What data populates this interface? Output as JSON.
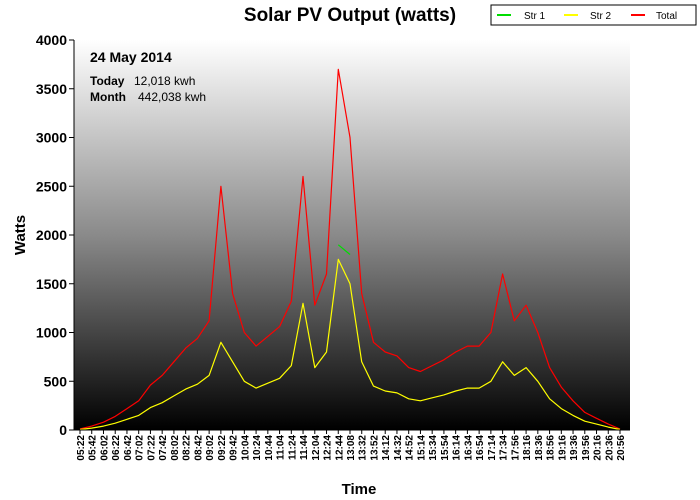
{
  "chart_data": {
    "type": "line",
    "title": "Solar PV Output (watts)",
    "xlabel": "Time",
    "ylabel": "Watts",
    "ylim": [
      0,
      4000
    ],
    "yticks": [
      0,
      500,
      1000,
      1500,
      2000,
      2500,
      3000,
      3500,
      4000
    ],
    "grid": false,
    "legend_position": "top-right",
    "annotations": {
      "date": "24 May 2014",
      "today_label": "Today",
      "today_value": "12,018 kwh",
      "month_label": "Month",
      "month_value": "442,038 kwh"
    },
    "x": [
      "05:22",
      "05:42",
      "06:02",
      "06:22",
      "06:42",
      "07:02",
      "07:22",
      "07:42",
      "08:02",
      "08:22",
      "08:42",
      "09:02",
      "09:22",
      "09:42",
      "10:04",
      "10:24",
      "10:44",
      "11:04",
      "11:24",
      "11:44",
      "12:04",
      "12:24",
      "12:44",
      "13:08",
      "13:32",
      "13:52",
      "14:12",
      "14:32",
      "14:52",
      "15:14",
      "15:34",
      "15:54",
      "16:14",
      "16:34",
      "16:54",
      "17:14",
      "17:34",
      "17:56",
      "18:16",
      "18:36",
      "18:56",
      "19:16",
      "19:36",
      "19:56",
      "20:16",
      "20:36",
      "20:56"
    ],
    "series": [
      {
        "name": "Str 1",
        "color": "#00dd00",
        "values": [
          0,
          0,
          0,
          0,
          0,
          0,
          0,
          0,
          0,
          0,
          0,
          0,
          0,
          0,
          0,
          0,
          0,
          0,
          0,
          0,
          0,
          0,
          1900,
          1800,
          0,
          0,
          0,
          0,
          0,
          0,
          0,
          0,
          0,
          0,
          0,
          0,
          0,
          0,
          0,
          0,
          0,
          0,
          0,
          0,
          0,
          0,
          0
        ]
      },
      {
        "name": "Str 2",
        "color": "#ffff00",
        "values": [
          5,
          20,
          40,
          70,
          110,
          150,
          230,
          280,
          350,
          420,
          470,
          560,
          900,
          700,
          500,
          430,
          480,
          530,
          660,
          1300,
          640,
          800,
          1750,
          1500,
          700,
          450,
          400,
          380,
          320,
          300,
          330,
          360,
          400,
          430,
          430,
          500,
          700,
          560,
          640,
          500,
          320,
          220,
          150,
          90,
          60,
          30,
          5
        ]
      },
      {
        "name": "Total",
        "color": "#ff0000",
        "values": [
          10,
          40,
          80,
          140,
          220,
          300,
          460,
          560,
          700,
          840,
          940,
          1120,
          2500,
          1400,
          1000,
          860,
          960,
          1060,
          1320,
          2600,
          1280,
          1600,
          3700,
          3000,
          1400,
          900,
          800,
          760,
          640,
          600,
          660,
          720,
          800,
          860,
          860,
          1000,
          1600,
          1120,
          1280,
          1000,
          640,
          440,
          300,
          180,
          120,
          60,
          10
        ]
      }
    ]
  }
}
